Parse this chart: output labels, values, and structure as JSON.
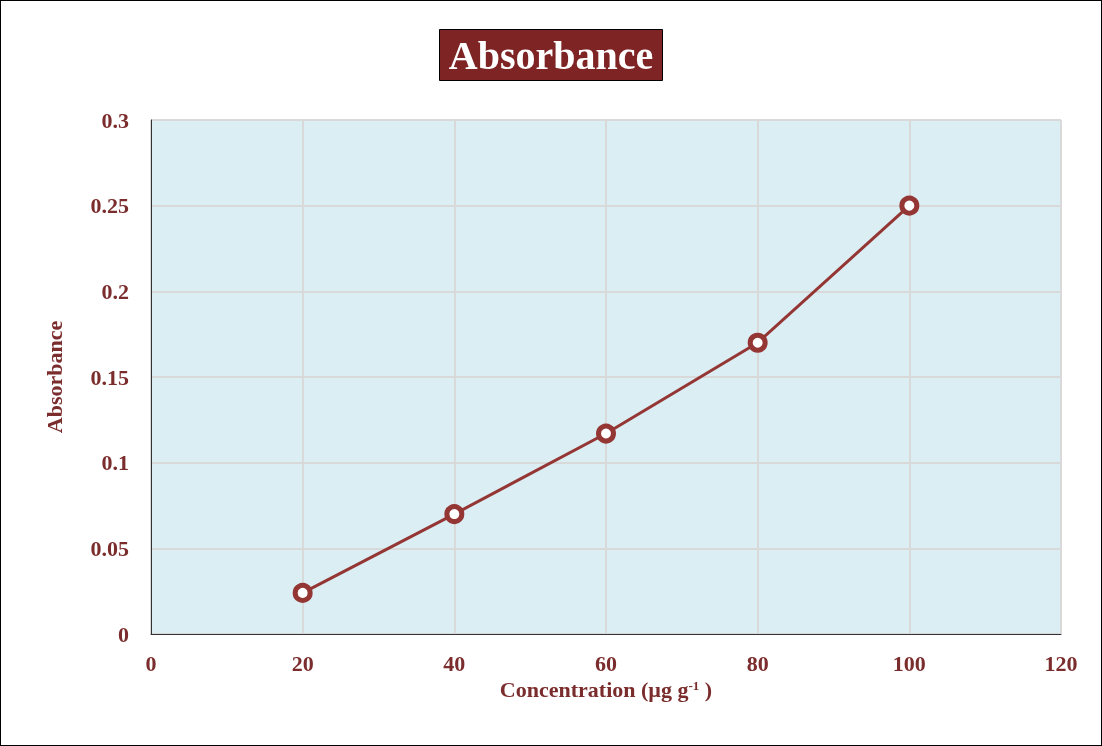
{
  "chart_data": {
    "type": "line",
    "title": "Absorbance",
    "xlabel": "Concentration (µg g$^{-1}$ )",
    "ylabel": "Absorbance",
    "x": [
      20,
      40,
      60,
      80,
      100
    ],
    "series": [
      {
        "color": "#943634",
        "values": [
          0.024,
          0.07,
          0.117,
          0.17,
          0.25
        ]
      }
    ],
    "xlim": [
      0,
      120
    ],
    "xticks": [
      0,
      20,
      40,
      60,
      80,
      100,
      120
    ],
    "ylim": [
      0,
      0.3
    ],
    "yticks": [
      0,
      0.05,
      0.1,
      0.15,
      0.2,
      0.25,
      0.3
    ],
    "grid": true,
    "marker": "circle",
    "line_style": "solid"
  }
}
